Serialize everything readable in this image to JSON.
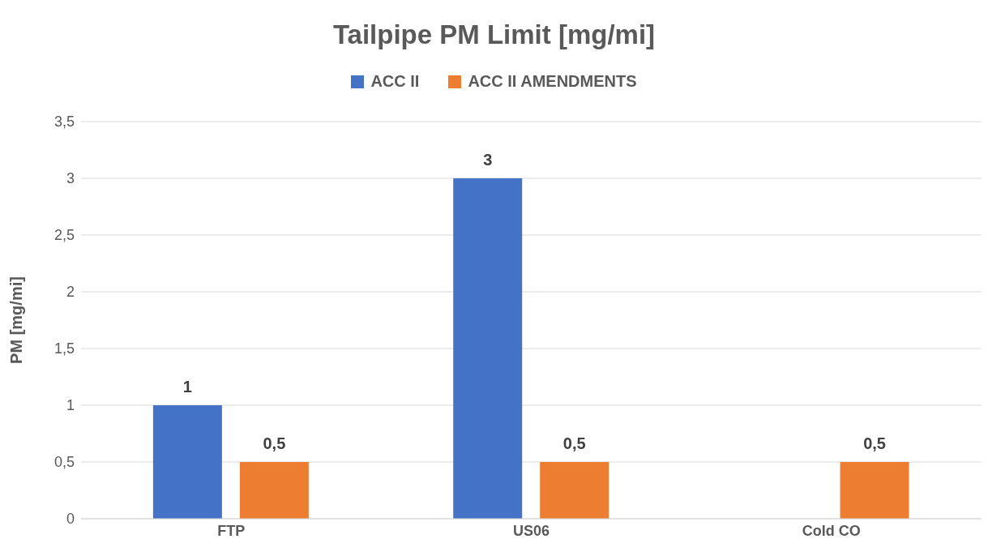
{
  "chart_data": {
    "type": "bar",
    "title": "Tailpipe PM Limit [mg/mi]",
    "ylabel": "PM [mg/mi]",
    "categories": [
      "FTP",
      "US06",
      "Cold CO"
    ],
    "series": [
      {
        "name": "ACC II",
        "color": "#4472c4",
        "values": [
          1,
          3,
          null
        ],
        "value_labels": [
          "1",
          "3",
          null
        ]
      },
      {
        "name": "ACC II AMENDMENTS",
        "color": "#ed7d31",
        "values": [
          0.5,
          0.5,
          0.5
        ],
        "value_labels": [
          "0,5",
          "0,5",
          "0,5"
        ]
      }
    ],
    "ylim": [
      0,
      3.5
    ],
    "yticks": [
      {
        "value": 0,
        "label": "0"
      },
      {
        "value": 0.5,
        "label": "0,5"
      },
      {
        "value": 1,
        "label": "1"
      },
      {
        "value": 1.5,
        "label": "1,5"
      },
      {
        "value": 2,
        "label": "2"
      },
      {
        "value": 2.5,
        "label": "2,5"
      },
      {
        "value": 3,
        "label": "3"
      },
      {
        "value": 3.5,
        "label": "3,5"
      }
    ],
    "grid": "y",
    "legend": "top"
  }
}
